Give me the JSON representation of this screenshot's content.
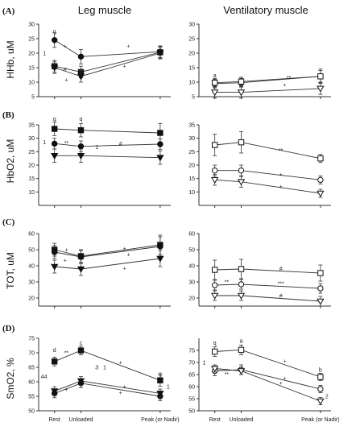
{
  "figure": {
    "col_titles": [
      "Leg muscle",
      "Ventilatory muscle"
    ],
    "x_categories": [
      "Rest",
      "Unloaded",
      "Peak (or Nadir)"
    ]
  },
  "chart_data": [
    {
      "type": "line",
      "panel": "(A)",
      "column": "Leg muscle",
      "ylabel": "HHb, uM",
      "ylim": [
        5,
        30
      ],
      "yticks": [
        5,
        10,
        15,
        20,
        25,
        30
      ],
      "x": [
        "Rest",
        "Unloaded",
        "Peak (or Nadir)"
      ],
      "series": [
        {
          "marker": "circle",
          "values": [
            24.5,
            18.8,
            20.5
          ],
          "err": [
            2.5,
            2.5,
            2
          ]
        },
        {
          "marker": "square",
          "values": [
            15.5,
            13.5,
            20.3
          ],
          "err": [
            2,
            2,
            2
          ]
        },
        {
          "marker": "triangle-down",
          "values": [
            15.0,
            12.0,
            20.0
          ],
          "err": [
            2,
            2,
            2
          ]
        }
      ],
      "annotations": [
        {
          "text": "q",
          "x": 0,
          "y": 27.5
        },
        {
          "text": "1",
          "x": -0.4,
          "y": 20
        },
        {
          "text": "+",
          "x": 0.4,
          "y": 22.5
        },
        {
          "text": "#",
          "x": 0.4,
          "y": 14.5
        },
        {
          "text": "+",
          "x": 0.45,
          "y": 10.8
        },
        {
          "text": "+",
          "x": 1.6,
          "y": 22.5
        },
        {
          "text": "+",
          "x": 1.55,
          "y": 15.5
        }
      ]
    },
    {
      "type": "line",
      "panel": "(A)",
      "column": "Ventilatory muscle",
      "ylabel": "",
      "ylim": [
        5,
        30
      ],
      "yticks": [
        5,
        10,
        15,
        20,
        25,
        30
      ],
      "x": [
        "Rest",
        "Unloaded",
        "Peak (or Nadir)"
      ],
      "series": [
        {
          "marker": "circle-open",
          "values": [
            9.5,
            9.8,
            12.0
          ],
          "err": [
            1.5,
            1.5,
            2
          ]
        },
        {
          "marker": "square-open",
          "values": [
            9.8,
            10.2,
            12.0
          ],
          "err": [
            1.5,
            1.5,
            2.5
          ]
        },
        {
          "marker": "triangle-down-open",
          "values": [
            6.5,
            6.5,
            7.8
          ],
          "err": [
            2,
            2,
            2
          ]
        }
      ],
      "annotations": [
        {
          "text": "a",
          "x": 0,
          "y": 12.3
        },
        {
          "text": "**",
          "x": 1.6,
          "y": 11.5
        },
        {
          "text": "+",
          "x": 1.55,
          "y": 9.0
        }
      ]
    },
    {
      "type": "line",
      "panel": "(B)",
      "column": "Leg muscle",
      "ylabel": "HbO2, uM",
      "ylim": [
        5,
        35
      ],
      "yticks": [
        10,
        15,
        20,
        25,
        30,
        35
      ],
      "x": [
        "Rest",
        "Unloaded",
        "Peak (or Nadir)"
      ],
      "series": [
        {
          "marker": "square",
          "values": [
            33.5,
            33.0,
            32.0
          ],
          "err": [
            2.5,
            2.5,
            3.5
          ]
        },
        {
          "marker": "circle",
          "values": [
            28.0,
            27.0,
            27.8
          ],
          "err": [
            2,
            2,
            2
          ]
        },
        {
          "marker": "triangle-down",
          "values": [
            23.5,
            23.5,
            22.8
          ],
          "err": [
            2.5,
            2.5,
            2.5
          ]
        }
      ],
      "annotations": [
        {
          "text": "q",
          "x": 0,
          "y": 37.2
        },
        {
          "text": "q",
          "x": 1,
          "y": 37.2
        },
        {
          "text": "1",
          "x": -0.4,
          "y": 28.5
        },
        {
          "text": "**",
          "x": 0.45,
          "y": 28.3
        },
        {
          "text": "1",
          "x": 1.2,
          "y": 26.8
        },
        {
          "text": "#",
          "x": 1.5,
          "y": 28.0
        }
      ]
    },
    {
      "type": "line",
      "panel": "(B)",
      "column": "Ventilatory muscle",
      "ylabel": "",
      "ylim": [
        5,
        35
      ],
      "yticks": [
        10,
        15,
        20,
        25,
        30,
        35
      ],
      "x": [
        "Rest",
        "Unloaded",
        "Peak (or Nadir)"
      ],
      "series": [
        {
          "marker": "square-open",
          "values": [
            27.5,
            28.5,
            22.5
          ],
          "err": [
            4,
            4,
            1.5
          ]
        },
        {
          "marker": "circle-open",
          "values": [
            18.0,
            18.0,
            14.5
          ],
          "err": [
            2,
            2,
            1.5
          ]
        },
        {
          "marker": "triangle-down-open",
          "values": [
            14.5,
            13.8,
            9.5
          ],
          "err": [
            2,
            2,
            1.5
          ]
        }
      ],
      "annotations": [
        {
          "text": "**",
          "x": 1.5,
          "y": 25.5
        },
        {
          "text": "+",
          "x": 1.5,
          "y": 16.6
        },
        {
          "text": "+",
          "x": 1.5,
          "y": 12.0
        }
      ]
    },
    {
      "type": "line",
      "panel": "(C)",
      "column": "Leg muscle",
      "ylabel": "TOT, uM",
      "ylim": [
        15,
        60
      ],
      "yticks": [
        20,
        30,
        40,
        50,
        60
      ],
      "x": [
        "Rest",
        "Unloaded",
        "Peak (or Nadir)"
      ],
      "series": [
        {
          "marker": "square",
          "values": [
            50.0,
            46.0,
            53.0
          ],
          "err": [
            4,
            4,
            6
          ]
        },
        {
          "marker": "circle",
          "values": [
            48.5,
            45.5,
            52.0
          ],
          "err": [
            4,
            4,
            6
          ]
        },
        {
          "marker": "triangle-down",
          "values": [
            39.5,
            38.0,
            44.5
          ],
          "err": [
            4,
            4,
            5
          ]
        }
      ],
      "annotations": [
        {
          "text": "+",
          "x": 0.45,
          "y": 50.0
        },
        {
          "text": "+",
          "x": 0.4,
          "y": 43.5
        },
        {
          "text": "+",
          "x": 1.55,
          "y": 50.8
        },
        {
          "text": "+",
          "x": 1.6,
          "y": 47.0
        },
        {
          "text": "+",
          "x": 1.55,
          "y": 38.5
        }
      ]
    },
    {
      "type": "line",
      "panel": "(C)",
      "column": "Ventilatory muscle",
      "ylabel": "",
      "ylim": [
        15,
        60
      ],
      "yticks": [
        20,
        30,
        40,
        50,
        60
      ],
      "x": [
        "Rest",
        "Unloaded",
        "Peak (or Nadir)"
      ],
      "series": [
        {
          "marker": "square-open",
          "values": [
            37.5,
            38.0,
            35.5
          ],
          "err": [
            6,
            6,
            5
          ]
        },
        {
          "marker": "circle-open",
          "values": [
            28.0,
            28.5,
            26.0
          ],
          "err": [
            3,
            3,
            3
          ]
        },
        {
          "marker": "triangle-down-open",
          "values": [
            21.5,
            21.5,
            18.0
          ],
          "err": [
            3,
            3,
            3
          ]
        }
      ],
      "annotations": [
        {
          "text": "**",
          "x": 0.45,
          "y": 30.0
        },
        {
          "text": "#",
          "x": 1.5,
          "y": 38.3
        },
        {
          "text": "***",
          "x": 1.5,
          "y": 28.9
        },
        {
          "text": "#",
          "x": 1.5,
          "y": 21.5
        }
      ]
    },
    {
      "type": "line",
      "panel": "(D)",
      "column": "Leg muscle",
      "ylabel": "SmO2, %",
      "ylim": [
        50,
        75
      ],
      "yticks": [
        50,
        55,
        60,
        65,
        70,
        75
      ],
      "x": [
        "Rest",
        "Unloaded",
        "Peak (or Nadir)"
      ],
      "series": [
        {
          "marker": "square",
          "values": [
            67.0,
            70.8,
            60.5
          ],
          "err": [
            1.5,
            1.5,
            2
          ]
        },
        {
          "marker": "circle",
          "values": [
            56.0,
            59.5,
            55.0
          ],
          "err": [
            1.5,
            1.5,
            1.5
          ]
        },
        {
          "marker": "triangle-down",
          "values": [
            56.8,
            60.3,
            56.0
          ],
          "err": [
            1.5,
            1.5,
            1.5
          ]
        }
      ],
      "annotations": [
        {
          "text": "d",
          "x": 0,
          "y": 71.0
        },
        {
          "text": "c",
          "x": 1,
          "y": 73.5
        },
        {
          "text": "q",
          "x": 2,
          "y": 62.8
        },
        {
          "text": "44",
          "x": -0.45,
          "y": 61.8
        },
        {
          "text": "**",
          "x": 0.45,
          "y": 70.0
        },
        {
          "text": "+",
          "x": 0.45,
          "y": 57.3
        },
        {
          "text": "3",
          "x": 1.2,
          "y": 65.0
        },
        {
          "text": "1",
          "x": 1.3,
          "y": 65.0
        },
        {
          "text": "+",
          "x": 1.5,
          "y": 66.6
        },
        {
          "text": "+",
          "x": 1.55,
          "y": 58.3
        },
        {
          "text": "+",
          "x": 1.5,
          "y": 56.3
        },
        {
          "text": "1",
          "x": 2.25,
          "y": 58.3
        }
      ]
    },
    {
      "type": "line",
      "panel": "(D)",
      "column": "Ventilatory muscle",
      "ylabel": "",
      "ylim": [
        50,
        80
      ],
      "yticks": [
        50,
        55,
        60,
        65,
        70,
        75
      ],
      "x": [
        "Rest",
        "Unloaded",
        "Peak (or Nadir)"
      ],
      "series": [
        {
          "marker": "square-open",
          "values": [
            74.5,
            75.2,
            64.0
          ],
          "err": [
            2,
            2,
            1.5
          ]
        },
        {
          "marker": "circle-open",
          "values": [
            66.5,
            67.0,
            59.0
          ],
          "err": [
            2,
            2,
            1.5
          ]
        },
        {
          "marker": "triangle-down-open",
          "values": [
            67.5,
            66.5,
            54.0
          ],
          "err": [
            1.5,
            1.5,
            1.5
          ]
        }
      ],
      "annotations": [
        {
          "text": "q",
          "x": 0,
          "y": 78.2
        },
        {
          "text": "a",
          "x": 1,
          "y": 79.0
        },
        {
          "text": "b",
          "x": 2,
          "y": 67.0
        },
        {
          "text": "1",
          "x": -0.45,
          "y": 70.0
        },
        {
          "text": "**",
          "x": 0.45,
          "y": 65.2
        },
        {
          "text": "+",
          "x": 1.55,
          "y": 70.7
        },
        {
          "text": "+",
          "x": 1.55,
          "y": 63.5
        },
        {
          "text": "+",
          "x": 1.5,
          "y": 61.5
        },
        {
          "text": "2",
          "x": 2.2,
          "y": 56.0
        }
      ]
    }
  ]
}
